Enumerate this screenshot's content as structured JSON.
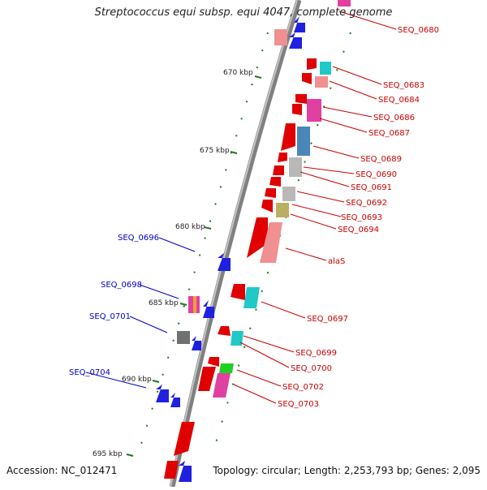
{
  "title": "Streptococcus equi subsp. equi 4047, complete genome",
  "footer": {
    "accession": "Accession: NC_012471",
    "topology": "Topology: circular; Length: 2,253,793 bp; Genes: 2,095"
  },
  "ticks": [
    "670 kbp",
    "675 kbp",
    "680 kbp",
    "685 kbp",
    "690 kbp",
    "695 kbp"
  ],
  "colors": {
    "backbone": "#7a7a7a",
    "forward_label": "#cc0000",
    "reverse_label": "#0000cc",
    "tick_dots": "#1e7a1e"
  },
  "forward_genes": [
    "SEQ_0680",
    "SEQ_0683",
    "SEQ_0684",
    "SEQ_0686",
    "SEQ_0687",
    "SEQ_0689",
    "SEQ_0690",
    "SEQ_0691",
    "SEQ_0692",
    "SEQ_0693",
    "SEQ_0694",
    "alaS",
    "SEQ_0697",
    "SEQ_0699",
    "SEQ_0700",
    "SEQ_0702",
    "SEQ_0703"
  ],
  "reverse_genes": [
    "SEQ_0696",
    "SEQ_0698",
    "SEQ_0701",
    "SEQ_0704"
  ]
}
